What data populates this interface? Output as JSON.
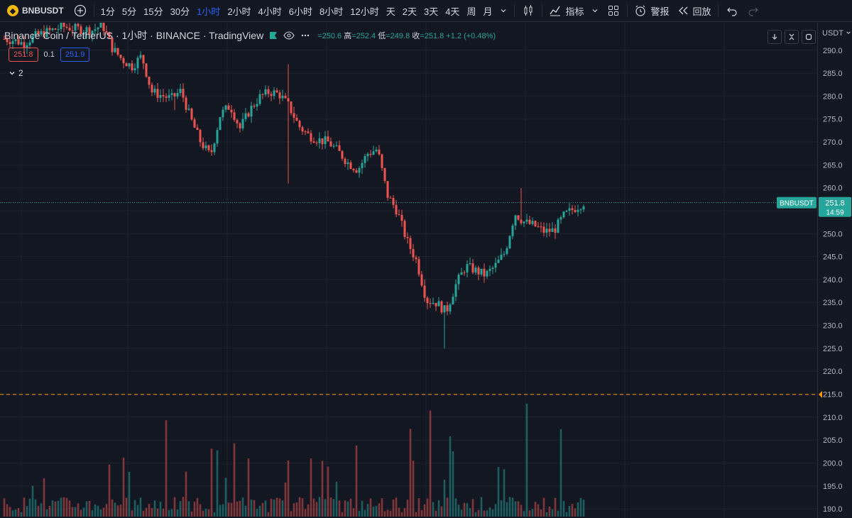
{
  "toolbar": {
    "symbol": "BNBUSDT",
    "intervals": [
      "1分",
      "5分",
      "15分",
      "30分",
      "1小时",
      "2小时",
      "4小时",
      "6小时",
      "8小时",
      "12小时",
      "天",
      "2天",
      "3天",
      "4天",
      "周",
      "月"
    ],
    "active_interval": "1小时",
    "indicators_label": "指标",
    "alerts_label": "警报",
    "replay_label": "回放"
  },
  "legend": {
    "title": "Binance Coin / TetherUS · 1小时 · BINANCE · TradingView",
    "ohlc_text": "=250.6  高=252.4  低=249.8  收=251.8  +1.2 (+0.48%)",
    "open_partial": "=250.6",
    "high": "252.4",
    "low": "249.8",
    "close": "251.8",
    "change": "+1.2 (+0.48%)",
    "high_label": "高",
    "low_label": "低",
    "close_label": "收"
  },
  "badges": {
    "sell_price": "251.8",
    "spread": "0.1",
    "buy_price": "251.9"
  },
  "indicator_count": "2",
  "price_axis": {
    "currency": "USDT",
    "current_symbol": "BNBUSDT",
    "current_price": "251.8",
    "countdown": "14:59",
    "alert_price": "210.0"
  },
  "colors": {
    "up": "#26a69a",
    "down": "#ef5350",
    "accent": "#2962ff",
    "alert": "#ff9800"
  },
  "chart_data": {
    "type": "candlestick",
    "ylim": [
      188,
      296
    ],
    "y_ticks": [
      190,
      195,
      200,
      205,
      210,
      215,
      220,
      225,
      230,
      235,
      240,
      245,
      250,
      255,
      260,
      265,
      270,
      275,
      280,
      285,
      290
    ],
    "grid": true,
    "close_path": [
      287.5,
      287.2,
      286.5,
      288.0,
      288.8,
      289.5,
      290.2,
      289.8,
      289.6,
      289.4,
      290.6,
      285.5,
      283.0,
      281.5,
      283.8,
      276.0,
      275.2,
      274.5,
      276.2,
      270.0,
      265.0,
      262.0,
      271.0,
      273.0,
      268.0,
      272.0,
      274.8,
      276.0,
      275.5,
      272.8,
      268.5,
      266.5,
      265.5,
      265.0,
      263.0,
      260.5,
      259.0,
      262.5,
      263.5,
      253.5,
      250.0,
      243.5,
      239.0,
      230.5,
      230.0,
      228.0,
      234.0,
      238.0,
      237.0,
      236.0,
      238.0,
      241.0,
      249.5,
      247.5,
      246.8,
      245.5,
      245.8,
      249.0,
      250.5,
      251.8
    ],
    "volume_alert_line": 210
  }
}
